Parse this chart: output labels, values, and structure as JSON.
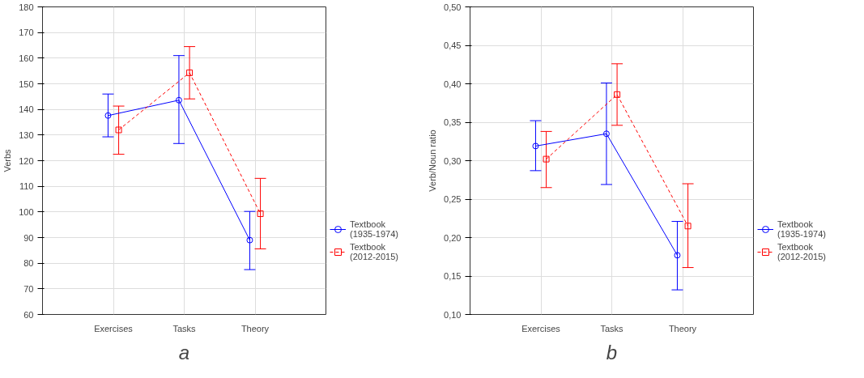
{
  "chart_data": [
    {
      "type": "line",
      "categories": [
        "Exercises",
        "Tasks",
        "Theory"
      ],
      "ylabel": "Verbs",
      "ylim": [
        60,
        180
      ],
      "yticks": [
        60,
        70,
        80,
        90,
        100,
        110,
        120,
        130,
        140,
        150,
        160,
        170,
        180
      ],
      "grid": true,
      "legend": "bottom right",
      "annotations": [
        "a"
      ],
      "series": [
        {
          "name": "Textbook (1935-1974)",
          "color": "#0000ff",
          "marker": "circle",
          "line_style": "solid",
          "values": [
            137.6,
            143.6,
            89
          ],
          "errors": [
            [
              129.3,
              146
            ],
            [
              126.7,
              161
            ],
            [
              77.5,
              100.2
            ]
          ]
        },
        {
          "name": "Textbook (2012-2015)",
          "color": "#ff0000",
          "marker": "square",
          "line_style": "dashed",
          "values": [
            132,
            154.3,
            99.3
          ],
          "errors": [
            [
              122.5,
              141.3
            ],
            [
              144.1,
              164.5
            ],
            [
              85.6,
              113.1
            ]
          ]
        }
      ]
    },
    {
      "type": "line",
      "categories": [
        "Exercises",
        "Tasks",
        "Theory"
      ],
      "ylabel": "Verb/Noun ratio",
      "ylim": [
        0.1,
        0.5
      ],
      "yticks": [
        {
          "value": 0.1,
          "label": "0,10"
        },
        {
          "value": 0.15,
          "label": "0,15"
        },
        {
          "value": 0.2,
          "label": "0,20"
        },
        {
          "value": 0.25,
          "label": "0,25"
        },
        {
          "value": 0.3,
          "label": "0,30"
        },
        {
          "value": 0.35,
          "label": "0,35"
        },
        {
          "value": 0.4,
          "label": "0,40"
        },
        {
          "value": 0.45,
          "label": "0,45"
        },
        {
          "value": 0.5,
          "label": "0,50"
        }
      ],
      "grid": true,
      "legend": "bottom right",
      "annotations": [
        "b"
      ],
      "series": [
        {
          "name": "Textbook (1935-1974)",
          "color": "#0000ff",
          "marker": "circle",
          "line_style": "solid",
          "values": [
            0.319,
            0.335,
            0.177
          ],
          "errors": [
            [
              0.287,
              0.352
            ],
            [
              0.269,
              0.401
            ],
            [
              0.132,
              0.221
            ]
          ]
        },
        {
          "name": "Textbook (2012-2015)",
          "color": "#ff0000",
          "marker": "square",
          "line_style": "dashed",
          "values": [
            0.302,
            0.386,
            0.215
          ],
          "errors": [
            [
              0.265,
              0.338
            ],
            [
              0.346,
              0.426
            ],
            [
              0.161,
              0.27
            ]
          ]
        }
      ]
    }
  ]
}
